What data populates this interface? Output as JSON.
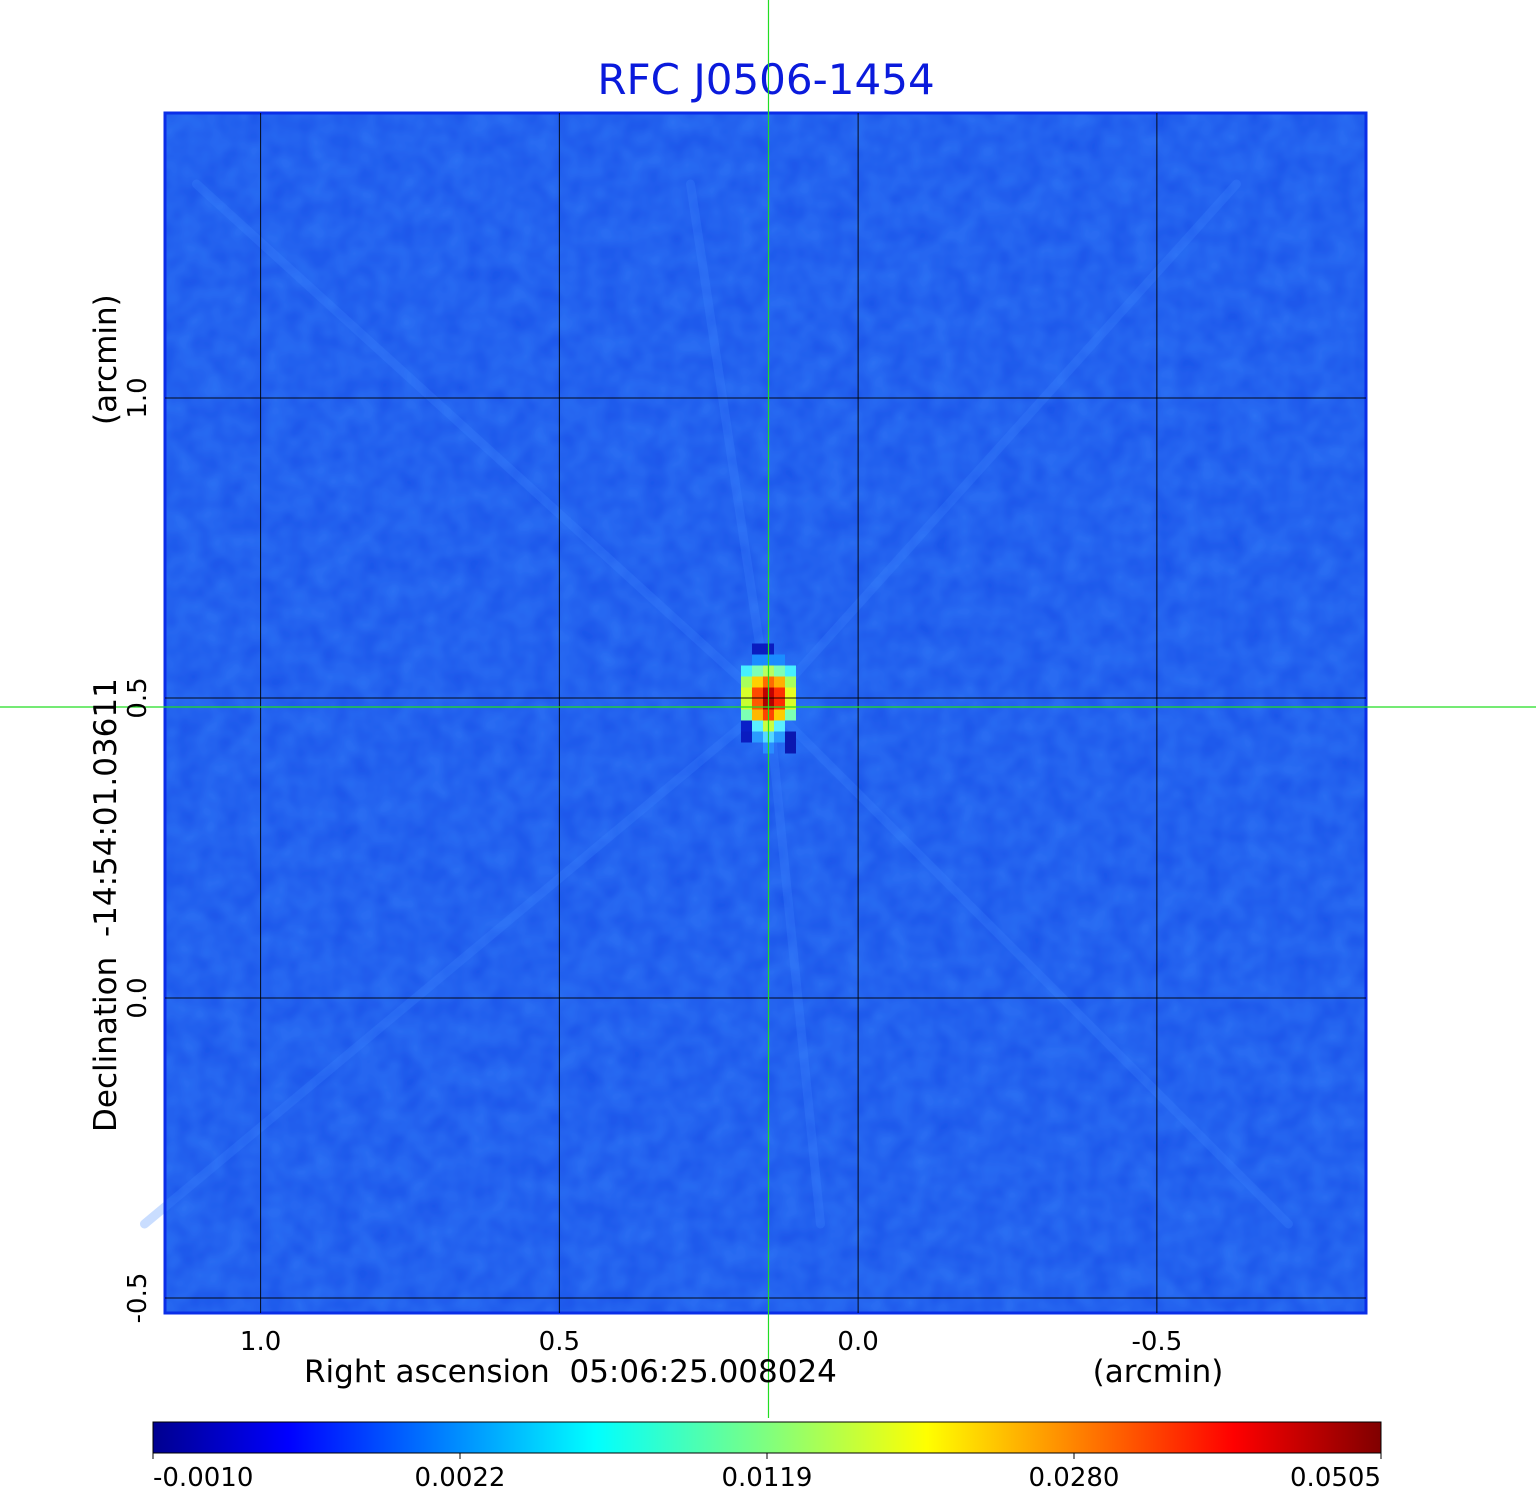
{
  "chart_data": {
    "type": "heatmap",
    "title": "RFC J0506-1454",
    "x_label": "Right ascension  05:06:25.008024",
    "x_unit": "(arcmin)",
    "y_label": "Declination  -14:54:01.03611",
    "y_unit": "(arcmin)",
    "x_ticks": [
      {
        "value": 1.0,
        "label": "1.0"
      },
      {
        "value": 0.5,
        "label": "0.5"
      },
      {
        "value": 0.0,
        "label": "0.0"
      },
      {
        "value": -0.5,
        "label": "-0.5"
      }
    ],
    "y_ticks": [
      {
        "value": 1.0,
        "label": "1.0"
      },
      {
        "value": 0.5,
        "label": "0.5"
      },
      {
        "value": 0.0,
        "label": "0.0"
      },
      {
        "value": -0.5,
        "label": "-0.5"
      }
    ],
    "xlim": [
      1.16,
      -0.85
    ],
    "ylim": [
      -0.525,
      1.475
    ],
    "x_reversed": true,
    "grid": true,
    "crosshair": {
      "x": 0.15,
      "y": 0.485
    },
    "source_peak": {
      "x": 0.15,
      "y": 0.49,
      "value": 0.0505
    },
    "colormap": "jet",
    "colorbar": {
      "ticks": [
        "-0.0010",
        "0.0022",
        "0.0119",
        "0.0280",
        "0.0505"
      ],
      "min": -0.001,
      "max": 0.0505
    },
    "colors": {
      "title": "#0a1adc",
      "background_field": "#1b55ea",
      "grid": "#000000",
      "crosshair": "#22dd22"
    }
  }
}
